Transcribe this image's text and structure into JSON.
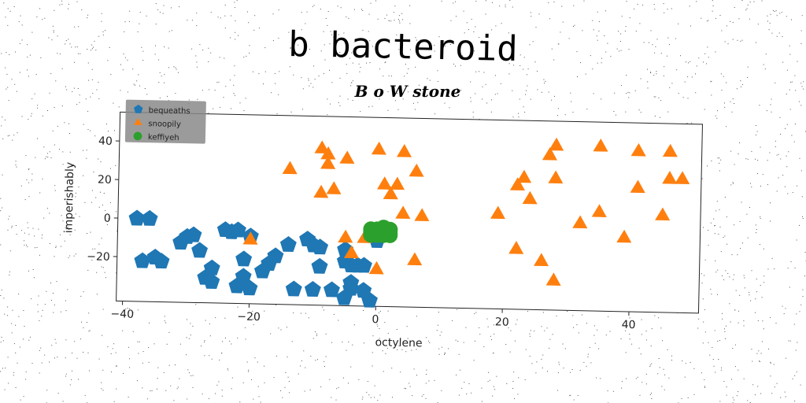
{
  "chart_data": {
    "type": "scatter",
    "title": "B o W stone",
    "suptitle": "b bacteroid",
    "xlabel": "octylene",
    "ylabel": "imperishably",
    "xlim": [
      -41,
      51
    ],
    "ylim": [
      -43,
      55
    ],
    "xticks": [
      -40,
      -20,
      0,
      20,
      40
    ],
    "yticks": [
      -20,
      0,
      20,
      40
    ],
    "xtick_labels": [
      "−40",
      "−20",
      "0",
      "20",
      "40"
    ],
    "ytick_labels": [
      "−20",
      "0",
      "20",
      "40"
    ],
    "grid": false,
    "legend_position": "top-left",
    "series": [
      {
        "name": "bequeaths",
        "color": "#1f77b4",
        "marker": "pentagon",
        "points": [
          [
            -38,
            0
          ],
          [
            -36,
            0
          ],
          [
            -37,
            -22
          ],
          [
            -35,
            -20
          ],
          [
            -34,
            -22
          ],
          [
            -30,
            -9
          ],
          [
            -31,
            -12
          ],
          [
            -29,
            -8
          ],
          [
            -28,
            -16
          ],
          [
            -26,
            -25
          ],
          [
            -27,
            -30
          ],
          [
            -26,
            -32
          ],
          [
            -24,
            -5
          ],
          [
            -23,
            -6
          ],
          [
            -22,
            -5
          ],
          [
            -20,
            -8
          ],
          [
            -21,
            -20
          ],
          [
            -21,
            -29
          ],
          [
            -22,
            -34
          ],
          [
            -20,
            -35
          ],
          [
            -18,
            -26
          ],
          [
            -17,
            -22
          ],
          [
            -16,
            -18
          ],
          [
            -14,
            -12
          ],
          [
            -13,
            -35
          ],
          [
            -11,
            -9
          ],
          [
            -10,
            -12
          ],
          [
            -9,
            -13
          ],
          [
            -9,
            -23
          ],
          [
            -10,
            -35
          ],
          [
            -7,
            -35
          ],
          [
            -5,
            -14
          ],
          [
            -5,
            -20
          ],
          [
            -4,
            -31
          ],
          [
            -4,
            -22
          ],
          [
            -3,
            -22
          ],
          [
            -2,
            -22
          ],
          [
            -4,
            -34
          ],
          [
            -5,
            -39
          ],
          [
            -1,
            -40
          ],
          [
            0,
            -9
          ],
          [
            0,
            -5
          ],
          [
            -2,
            -35
          ]
        ]
      },
      {
        "name": "snoopily",
        "color": "#ff7f0e",
        "marker": "triangle",
        "points": [
          [
            -9,
            38
          ],
          [
            -8,
            35
          ],
          [
            -8,
            30
          ],
          [
            -5,
            33
          ],
          [
            -14,
            27
          ],
          [
            -9,
            15
          ],
          [
            -7,
            17
          ],
          [
            0,
            38
          ],
          [
            4,
            37
          ],
          [
            6,
            27
          ],
          [
            1,
            20
          ],
          [
            2,
            15
          ],
          [
            3,
            20
          ],
          [
            4,
            5
          ],
          [
            7,
            4
          ],
          [
            -5,
            -8
          ],
          [
            -4,
            -16
          ],
          [
            -2,
            -8
          ],
          [
            -20,
            -10
          ],
          [
            0,
            -24
          ],
          [
            6,
            -19
          ],
          [
            28,
            42
          ],
          [
            27,
            37
          ],
          [
            35,
            42
          ],
          [
            41,
            40
          ],
          [
            46,
            40
          ],
          [
            23,
            25
          ],
          [
            28,
            25
          ],
          [
            22,
            21
          ],
          [
            24,
            14
          ],
          [
            41,
            21
          ],
          [
            46,
            26
          ],
          [
            48,
            26
          ],
          [
            35,
            8
          ],
          [
            45,
            7
          ],
          [
            19,
            6
          ],
          [
            32,
            2
          ],
          [
            39,
            -5
          ],
          [
            22,
            -12
          ],
          [
            26,
            -18
          ],
          [
            28,
            -28
          ]
        ]
      },
      {
        "name": "keffiyeh",
        "color": "#2ca02c",
        "marker": "circle",
        "points": [
          [
            -1,
            -4
          ],
          [
            0,
            -3
          ],
          [
            1,
            -4
          ],
          [
            2,
            -5
          ],
          [
            0,
            -6
          ],
          [
            1,
            -2
          ],
          [
            -1,
            -6
          ],
          [
            2,
            -3
          ],
          [
            0,
            -5
          ],
          [
            1,
            -6
          ],
          [
            -1,
            -3
          ],
          [
            2,
            -6
          ],
          [
            1,
            -4
          ],
          [
            0,
            -4
          ]
        ]
      }
    ]
  }
}
